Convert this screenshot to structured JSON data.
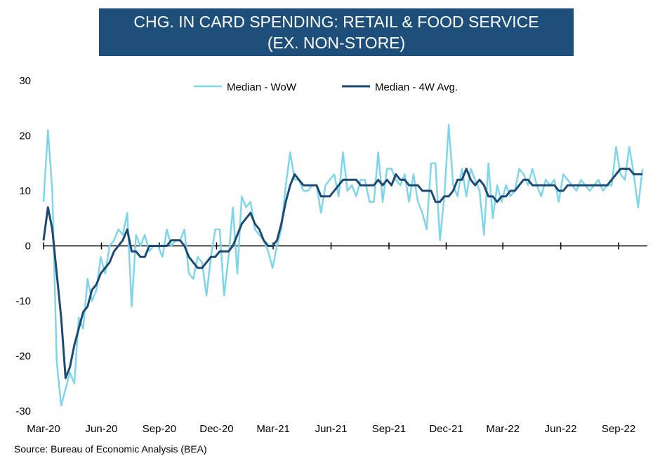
{
  "title": {
    "line1": "CHG. IN CARD SPENDING: RETAIL & FOOD SERVICE",
    "line2": "(EX. NON-STORE)"
  },
  "source": "Source: Bureau of Economic Analysis (BEA)",
  "colors": {
    "title_bg": "#1d4f7a",
    "wow": "#7fd6ea",
    "avg": "#1d4a72",
    "axis": "#000000"
  },
  "chart_data": {
    "type": "line",
    "title": "CHG. IN CARD SPENDING: RETAIL & FOOD SERVICE (EX. NON-STORE)",
    "xlabel": "",
    "ylabel": "",
    "ylim": [
      -30,
      30
    ],
    "yticks": [
      30,
      20,
      10,
      0,
      -10,
      -20,
      -30
    ],
    "xlim": [
      "2020-03-01",
      "2022-10-10"
    ],
    "xticks": [
      {
        "date": "2020-03-01",
        "label": "Mar-20"
      },
      {
        "date": "2020-06-01",
        "label": "Jun-20"
      },
      {
        "date": "2020-09-01",
        "label": "Sep-20"
      },
      {
        "date": "2020-12-01",
        "label": "Dec-20"
      },
      {
        "date": "2021-03-01",
        "label": "Mar-21"
      },
      {
        "date": "2021-06-01",
        "label": "Jun-21"
      },
      {
        "date": "2021-09-01",
        "label": "Sep-21"
      },
      {
        "date": "2021-12-01",
        "label": "Dec-21"
      },
      {
        "date": "2022-03-01",
        "label": "Mar-22"
      },
      {
        "date": "2022-06-01",
        "label": "Jun-22"
      },
      {
        "date": "2022-09-01",
        "label": "Sep-22"
      }
    ],
    "legend": "top-center",
    "grid": false,
    "series": [
      {
        "name": "Median - WoW",
        "color": "#7fd6ea",
        "points": [
          [
            "2020-03-01",
            8
          ],
          [
            "2020-03-08",
            21
          ],
          [
            "2020-03-15",
            10
          ],
          [
            "2020-03-22",
            -21
          ],
          [
            "2020-03-29",
            -29
          ],
          [
            "2020-04-05",
            -26
          ],
          [
            "2020-04-12",
            -23
          ],
          [
            "2020-04-19",
            -25
          ],
          [
            "2020-04-26",
            -13
          ],
          [
            "2020-05-03",
            -15
          ],
          [
            "2020-05-10",
            -6
          ],
          [
            "2020-05-17",
            -10
          ],
          [
            "2020-05-24",
            -8
          ],
          [
            "2020-05-31",
            -2
          ],
          [
            "2020-06-07",
            -5
          ],
          [
            "2020-06-14",
            0
          ],
          [
            "2020-06-21",
            1
          ],
          [
            "2020-06-28",
            3
          ],
          [
            "2020-07-05",
            2
          ],
          [
            "2020-07-12",
            6
          ],
          [
            "2020-07-19",
            -11
          ],
          [
            "2020-07-26",
            2
          ],
          [
            "2020-08-02",
            0
          ],
          [
            "2020-08-09",
            2
          ],
          [
            "2020-08-16",
            -1
          ],
          [
            "2020-08-23",
            0
          ],
          [
            "2020-08-30",
            0
          ],
          [
            "2020-09-06",
            -2
          ],
          [
            "2020-09-13",
            3
          ],
          [
            "2020-09-20",
            0
          ],
          [
            "2020-09-27",
            1
          ],
          [
            "2020-10-04",
            1
          ],
          [
            "2020-10-11",
            3
          ],
          [
            "2020-10-18",
            -5
          ],
          [
            "2020-10-25",
            -6
          ],
          [
            "2020-11-01",
            -2
          ],
          [
            "2020-11-08",
            -3
          ],
          [
            "2020-11-15",
            -9
          ],
          [
            "2020-11-22",
            -2
          ],
          [
            "2020-11-29",
            3
          ],
          [
            "2020-12-06",
            3
          ],
          [
            "2020-12-13",
            -9
          ],
          [
            "2020-12-20",
            -2
          ],
          [
            "2020-12-27",
            7
          ],
          [
            "2021-01-03",
            -5
          ],
          [
            "2021-01-10",
            9
          ],
          [
            "2021-01-17",
            7
          ],
          [
            "2021-01-24",
            8
          ],
          [
            "2021-01-31",
            3
          ],
          [
            "2021-02-07",
            2
          ],
          [
            "2021-02-14",
            1
          ],
          [
            "2021-02-21",
            -1
          ],
          [
            "2021-02-28",
            -4
          ],
          [
            "2021-03-07",
            0
          ],
          [
            "2021-03-14",
            3
          ],
          [
            "2021-03-21",
            11
          ],
          [
            "2021-03-28",
            17
          ],
          [
            "2021-04-04",
            12
          ],
          [
            "2021-04-11",
            12
          ],
          [
            "2021-04-18",
            10
          ],
          [
            "2021-04-25",
            10
          ],
          [
            "2021-05-02",
            11
          ],
          [
            "2021-05-09",
            11
          ],
          [
            "2021-05-16",
            6
          ],
          [
            "2021-05-23",
            11
          ],
          [
            "2021-05-30",
            12
          ],
          [
            "2021-06-06",
            13
          ],
          [
            "2021-06-13",
            9
          ],
          [
            "2021-06-20",
            17
          ],
          [
            "2021-06-27",
            10
          ],
          [
            "2021-07-04",
            11
          ],
          [
            "2021-07-11",
            9
          ],
          [
            "2021-07-18",
            12
          ],
          [
            "2021-07-25",
            12
          ],
          [
            "2021-08-01",
            8
          ],
          [
            "2021-08-08",
            8
          ],
          [
            "2021-08-15",
            17
          ],
          [
            "2021-08-22",
            8
          ],
          [
            "2021-08-29",
            14
          ],
          [
            "2021-09-05",
            14
          ],
          [
            "2021-09-12",
            12
          ],
          [
            "2021-09-19",
            11
          ],
          [
            "2021-09-26",
            13
          ],
          [
            "2021-10-03",
            8
          ],
          [
            "2021-10-10",
            13
          ],
          [
            "2021-10-17",
            8
          ],
          [
            "2021-10-24",
            6
          ],
          [
            "2021-10-31",
            3
          ],
          [
            "2021-11-07",
            15
          ],
          [
            "2021-11-14",
            15
          ],
          [
            "2021-11-21",
            1
          ],
          [
            "2021-11-28",
            9
          ],
          [
            "2021-12-05",
            22
          ],
          [
            "2021-12-12",
            11
          ],
          [
            "2021-12-19",
            9
          ],
          [
            "2021-12-26",
            14
          ],
          [
            "2022-01-02",
            9
          ],
          [
            "2022-01-09",
            14
          ],
          [
            "2022-01-16",
            12
          ],
          [
            "2022-01-23",
            10
          ],
          [
            "2022-01-30",
            2
          ],
          [
            "2022-02-06",
            15
          ],
          [
            "2022-02-13",
            5
          ],
          [
            "2022-02-20",
            11
          ],
          [
            "2022-02-27",
            8
          ],
          [
            "2022-03-06",
            11
          ],
          [
            "2022-03-13",
            9
          ],
          [
            "2022-03-20",
            10
          ],
          [
            "2022-03-27",
            14
          ],
          [
            "2022-04-03",
            13
          ],
          [
            "2022-04-10",
            11
          ],
          [
            "2022-04-17",
            14
          ],
          [
            "2022-04-24",
            11
          ],
          [
            "2022-05-01",
            9
          ],
          [
            "2022-05-08",
            12
          ],
          [
            "2022-05-15",
            11
          ],
          [
            "2022-05-22",
            12
          ],
          [
            "2022-05-29",
            8
          ],
          [
            "2022-06-05",
            13
          ],
          [
            "2022-06-12",
            12
          ],
          [
            "2022-06-19",
            11
          ],
          [
            "2022-06-26",
            10
          ],
          [
            "2022-07-03",
            12
          ],
          [
            "2022-07-10",
            11
          ],
          [
            "2022-07-17",
            10
          ],
          [
            "2022-07-24",
            11
          ],
          [
            "2022-07-31",
            12
          ],
          [
            "2022-08-07",
            10
          ],
          [
            "2022-08-14",
            11
          ],
          [
            "2022-08-21",
            11
          ],
          [
            "2022-08-28",
            18
          ],
          [
            "2022-09-04",
            13
          ],
          [
            "2022-09-11",
            12
          ],
          [
            "2022-09-18",
            18
          ],
          [
            "2022-09-25",
            13
          ],
          [
            "2022-10-02",
            7
          ],
          [
            "2022-10-09",
            14
          ]
        ]
      },
      {
        "name": "Median - 4W Avg.",
        "color": "#1d4a72",
        "points": [
          [
            "2020-03-01",
            1
          ],
          [
            "2020-03-08",
            7
          ],
          [
            "2020-03-15",
            3
          ],
          [
            "2020-03-22",
            -5
          ],
          [
            "2020-03-29",
            -13
          ],
          [
            "2020-04-05",
            -24
          ],
          [
            "2020-04-12",
            -22
          ],
          [
            "2020-04-19",
            -18
          ],
          [
            "2020-04-26",
            -15
          ],
          [
            "2020-05-03",
            -12
          ],
          [
            "2020-05-10",
            -11
          ],
          [
            "2020-05-17",
            -8
          ],
          [
            "2020-05-24",
            -7
          ],
          [
            "2020-05-31",
            -5
          ],
          [
            "2020-06-07",
            -4
          ],
          [
            "2020-06-14",
            -3
          ],
          [
            "2020-06-21",
            -1
          ],
          [
            "2020-06-28",
            0
          ],
          [
            "2020-07-05",
            1
          ],
          [
            "2020-07-12",
            3
          ],
          [
            "2020-07-19",
            -1
          ],
          [
            "2020-07-26",
            -1
          ],
          [
            "2020-08-02",
            -2
          ],
          [
            "2020-08-09",
            -2
          ],
          [
            "2020-08-16",
            0
          ],
          [
            "2020-08-23",
            0
          ],
          [
            "2020-08-30",
            0
          ],
          [
            "2020-09-06",
            0
          ],
          [
            "2020-09-13",
            0
          ],
          [
            "2020-09-20",
            1
          ],
          [
            "2020-09-27",
            1
          ],
          [
            "2020-10-04",
            1
          ],
          [
            "2020-10-11",
            0
          ],
          [
            "2020-10-18",
            -2
          ],
          [
            "2020-10-25",
            -3
          ],
          [
            "2020-11-01",
            -4
          ],
          [
            "2020-11-08",
            -4
          ],
          [
            "2020-11-15",
            -3
          ],
          [
            "2020-11-22",
            -2
          ],
          [
            "2020-11-29",
            -2
          ],
          [
            "2020-12-06",
            -1
          ],
          [
            "2020-12-13",
            -1
          ],
          [
            "2020-12-20",
            -1
          ],
          [
            "2020-12-27",
            0
          ],
          [
            "2021-01-03",
            2
          ],
          [
            "2021-01-10",
            4
          ],
          [
            "2021-01-17",
            5
          ],
          [
            "2021-01-24",
            6
          ],
          [
            "2021-01-31",
            4
          ],
          [
            "2021-02-07",
            3
          ],
          [
            "2021-02-14",
            1
          ],
          [
            "2021-02-21",
            0
          ],
          [
            "2021-02-28",
            0
          ],
          [
            "2021-03-07",
            1
          ],
          [
            "2021-03-14",
            4
          ],
          [
            "2021-03-21",
            8
          ],
          [
            "2021-03-28",
            11
          ],
          [
            "2021-04-04",
            13
          ],
          [
            "2021-04-11",
            12
          ],
          [
            "2021-04-18",
            11
          ],
          [
            "2021-04-25",
            11
          ],
          [
            "2021-05-02",
            11
          ],
          [
            "2021-05-09",
            11
          ],
          [
            "2021-05-16",
            9
          ],
          [
            "2021-05-23",
            9
          ],
          [
            "2021-05-30",
            9
          ],
          [
            "2021-06-06",
            10
          ],
          [
            "2021-06-13",
            11
          ],
          [
            "2021-06-20",
            12
          ],
          [
            "2021-06-27",
            12
          ],
          [
            "2021-07-04",
            12
          ],
          [
            "2021-07-11",
            12
          ],
          [
            "2021-07-18",
            11
          ],
          [
            "2021-07-25",
            11
          ],
          [
            "2021-08-01",
            11
          ],
          [
            "2021-08-08",
            11
          ],
          [
            "2021-08-15",
            12
          ],
          [
            "2021-08-22",
            11
          ],
          [
            "2021-08-29",
            12
          ],
          [
            "2021-09-05",
            11
          ],
          [
            "2021-09-12",
            13
          ],
          [
            "2021-09-19",
            12
          ],
          [
            "2021-09-26",
            12
          ],
          [
            "2021-10-03",
            11
          ],
          [
            "2021-10-10",
            11
          ],
          [
            "2021-10-17",
            11
          ],
          [
            "2021-10-24",
            10
          ],
          [
            "2021-10-31",
            10
          ],
          [
            "2021-11-07",
            10
          ],
          [
            "2021-11-14",
            8
          ],
          [
            "2021-11-21",
            8
          ],
          [
            "2021-11-28",
            9
          ],
          [
            "2021-12-05",
            9
          ],
          [
            "2021-12-12",
            10
          ],
          [
            "2021-12-19",
            12
          ],
          [
            "2021-12-26",
            12
          ],
          [
            "2022-01-02",
            14
          ],
          [
            "2022-01-09",
            12
          ],
          [
            "2022-01-16",
            11
          ],
          [
            "2022-01-23",
            12
          ],
          [
            "2022-01-30",
            11
          ],
          [
            "2022-02-06",
            9
          ],
          [
            "2022-02-13",
            9
          ],
          [
            "2022-02-20",
            8
          ],
          [
            "2022-02-27",
            9
          ],
          [
            "2022-03-06",
            9
          ],
          [
            "2022-03-13",
            10
          ],
          [
            "2022-03-20",
            10
          ],
          [
            "2022-03-27",
            11
          ],
          [
            "2022-04-03",
            12
          ],
          [
            "2022-04-10",
            12
          ],
          [
            "2022-04-17",
            11
          ],
          [
            "2022-04-24",
            11
          ],
          [
            "2022-05-01",
            11
          ],
          [
            "2022-05-08",
            11
          ],
          [
            "2022-05-15",
            11
          ],
          [
            "2022-05-22",
            11
          ],
          [
            "2022-05-29",
            10
          ],
          [
            "2022-06-05",
            10
          ],
          [
            "2022-06-12",
            11
          ],
          [
            "2022-06-19",
            11
          ],
          [
            "2022-06-26",
            11
          ],
          [
            "2022-07-03",
            11
          ],
          [
            "2022-07-10",
            11
          ],
          [
            "2022-07-17",
            11
          ],
          [
            "2022-07-24",
            11
          ],
          [
            "2022-07-31",
            11
          ],
          [
            "2022-08-07",
            11
          ],
          [
            "2022-08-14",
            11
          ],
          [
            "2022-08-21",
            12
          ],
          [
            "2022-08-28",
            13
          ],
          [
            "2022-09-04",
            14
          ],
          [
            "2022-09-11",
            14
          ],
          [
            "2022-09-18",
            14
          ],
          [
            "2022-09-25",
            13
          ],
          [
            "2022-10-02",
            13
          ],
          [
            "2022-10-09",
            13
          ]
        ]
      }
    ]
  }
}
